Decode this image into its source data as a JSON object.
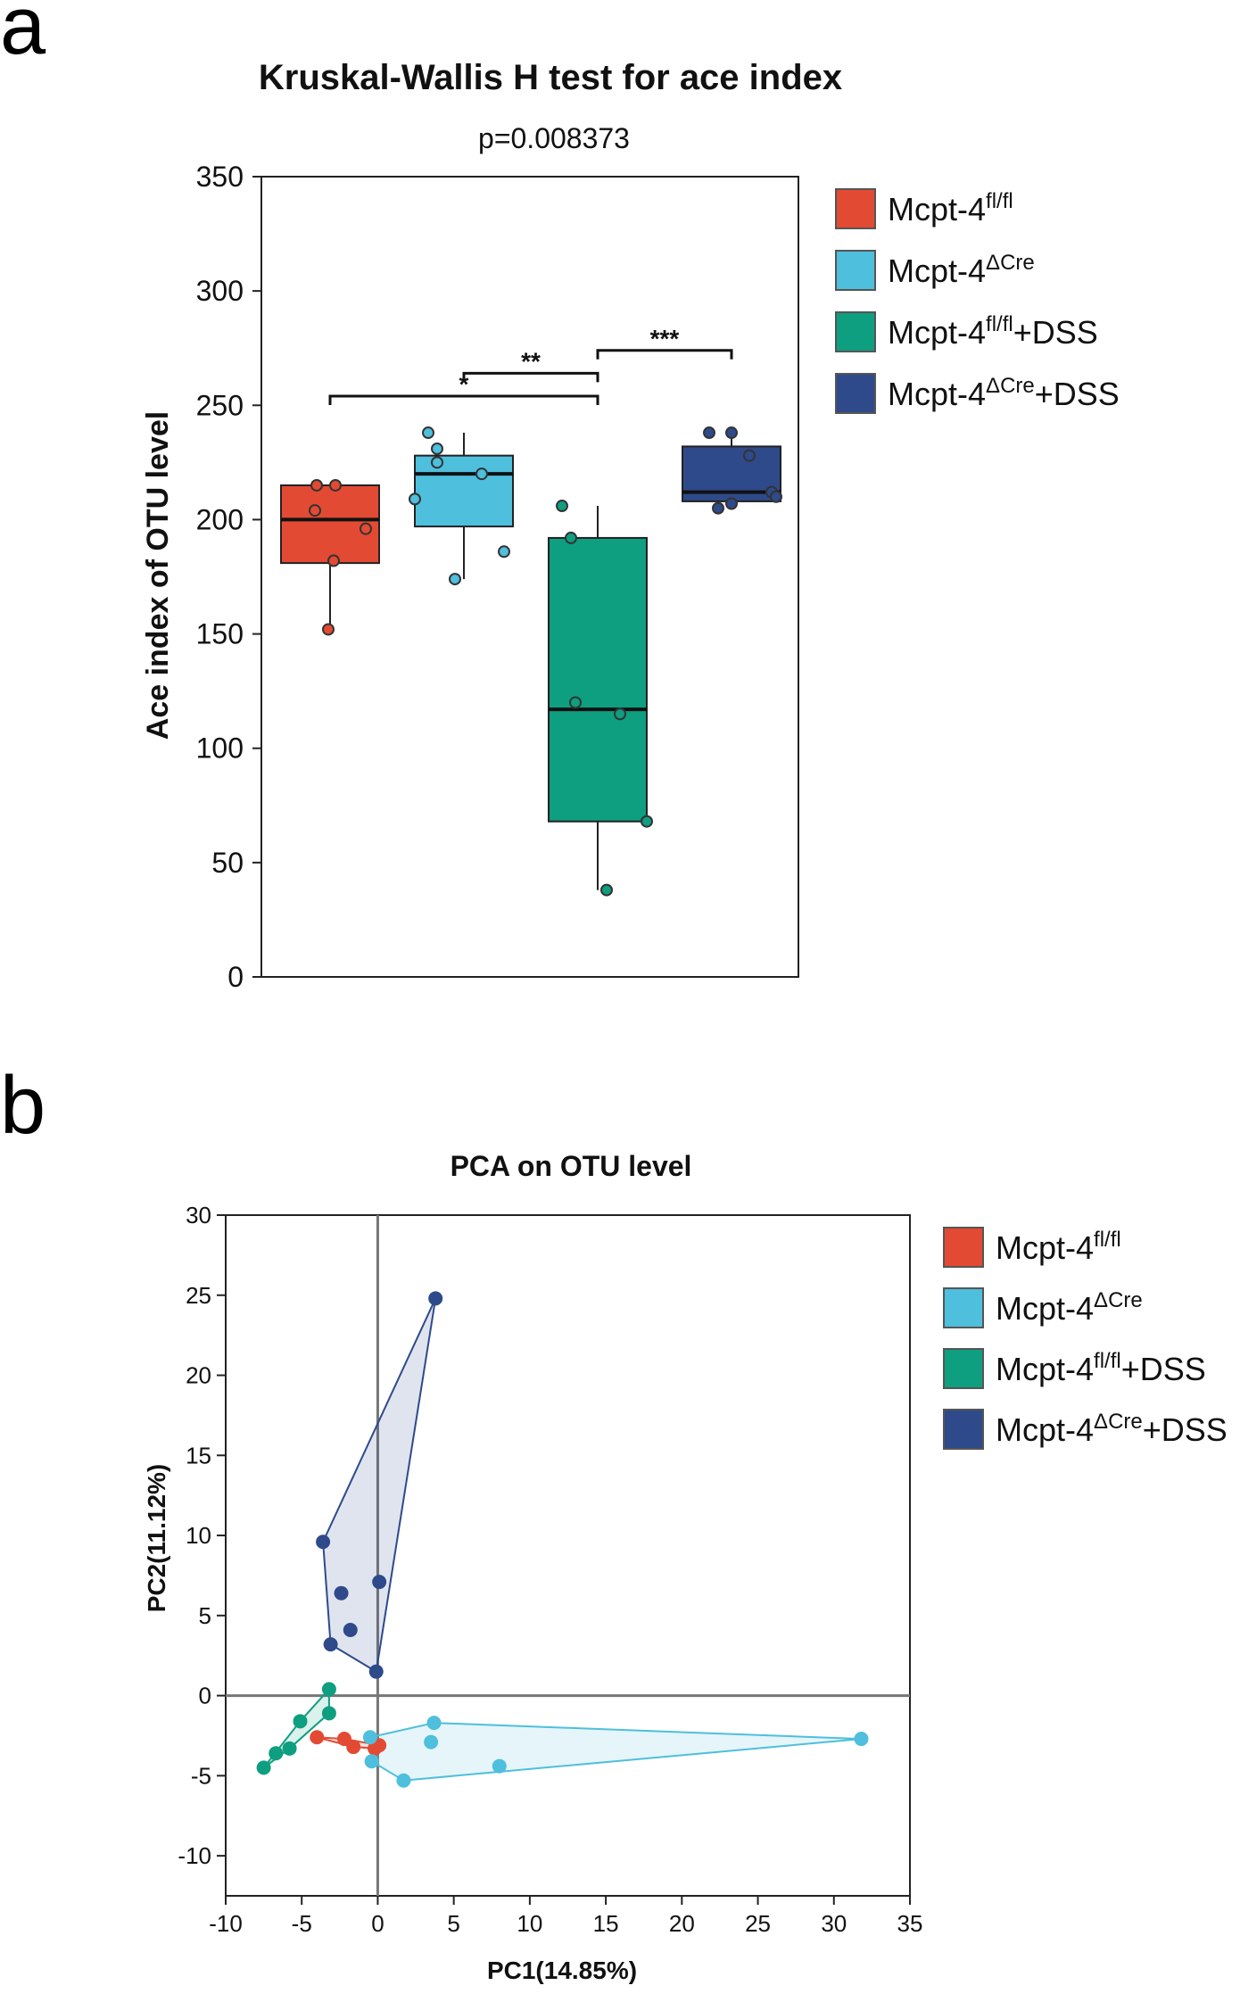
{
  "panels": {
    "a": {
      "label": "a"
    },
    "b": {
      "label": "b"
    }
  },
  "chart_data": [
    {
      "type": "box",
      "title": "Kruskal-Wallis H test for ace index",
      "subtitle": "p=0.008373",
      "xlabel": "",
      "ylabel": "Ace index of OTU level",
      "ylim": [
        0,
        350
      ],
      "yticks": [
        0,
        50,
        100,
        150,
        200,
        250,
        300,
        350
      ],
      "grid": false,
      "legend_position": "right",
      "groups": [
        {
          "name": "Mcpt-4",
          "sup": "fl/fl",
          "suffix": "",
          "color": "#E34A33",
          "whisker_low": 152,
          "q1": 181,
          "median": 200,
          "q3": 215,
          "whisker_high": 215,
          "points": [
            215,
            215,
            204,
            196,
            182,
            152
          ]
        },
        {
          "name": "Mcpt-4",
          "sup": "ΔCre",
          "suffix": "",
          "color": "#4EBFDC",
          "whisker_low": 174,
          "q1": 197,
          "median": 220,
          "q3": 228,
          "whisker_high": 238,
          "points": [
            238,
            231,
            225,
            220,
            209,
            186,
            174
          ]
        },
        {
          "name": "Mcpt-4",
          "sup": "fl/fl",
          "suffix": "+DSS",
          "color": "#0E9E80",
          "whisker_low": 38,
          "q1": 68,
          "median": 117,
          "q3": 192,
          "whisker_high": 206,
          "points": [
            206,
            192,
            120,
            115,
            68,
            38
          ]
        },
        {
          "name": "Mcpt-4",
          "sup": "ΔCre",
          "suffix": "+DSS",
          "color": "#2E4A8B",
          "whisker_low": 205,
          "q1": 208,
          "median": 212,
          "q3": 232,
          "whisker_high": 238,
          "points": [
            238,
            238,
            228,
            212,
            210,
            207,
            205
          ]
        }
      ],
      "annotations": [
        {
          "from": 0,
          "to": 2,
          "label": "*",
          "y": 254
        },
        {
          "from": 1,
          "to": 2,
          "label": "**",
          "y": 264
        },
        {
          "from": 2,
          "to": 3,
          "label": "***",
          "y": 274
        }
      ]
    },
    {
      "type": "scatter",
      "title": "PCA on OTU level",
      "xlabel": "PC1(14.85%)",
      "ylabel": "PC2(11.12%)",
      "xlim": [
        -10,
        35
      ],
      "ylim": [
        -12.5,
        30
      ],
      "xticks": [
        -10,
        -5,
        0,
        5,
        10,
        15,
        20,
        25,
        30,
        35
      ],
      "yticks": [
        -10,
        -5,
        0,
        5,
        10,
        15,
        20,
        25,
        30
      ],
      "grid": false,
      "legend_position": "right",
      "series": [
        {
          "name": "Mcpt-4",
          "sup": "fl/fl",
          "suffix": "",
          "color": "#E34A33",
          "points": [
            [
              -4.0,
              -2.6
            ],
            [
              -2.2,
              -2.7
            ],
            [
              -1.6,
              -3.2
            ],
            [
              -0.2,
              -3.3
            ],
            [
              0.1,
              -3.1
            ]
          ]
        },
        {
          "name": "Mcpt-4",
          "sup": "ΔCre",
          "suffix": "",
          "color": "#4EBFDC",
          "points": [
            [
              31.8,
              -2.7
            ],
            [
              3.7,
              -1.7
            ],
            [
              3.5,
              -2.9
            ],
            [
              -0.5,
              -2.6
            ],
            [
              -0.4,
              -4.1
            ],
            [
              8.0,
              -4.4
            ],
            [
              1.7,
              -5.3
            ]
          ]
        },
        {
          "name": "Mcpt-4",
          "sup": "fl/fl",
          "suffix": "+DSS",
          "color": "#0E9E80",
          "points": [
            [
              -3.2,
              0.4
            ],
            [
              -3.2,
              -1.1
            ],
            [
              -5.1,
              -1.6
            ],
            [
              -6.7,
              -3.6
            ],
            [
              -5.8,
              -3.3
            ],
            [
              -7.5,
              -4.5
            ]
          ]
        },
        {
          "name": "Mcpt-4",
          "sup": "ΔCre",
          "suffix": "+DSS",
          "color": "#2E4A8B",
          "points": [
            [
              3.8,
              24.8
            ],
            [
              -3.6,
              9.6
            ],
            [
              -2.4,
              6.4
            ],
            [
              0.1,
              7.1
            ],
            [
              -1.8,
              4.1
            ],
            [
              -3.1,
              3.2
            ],
            [
              -0.1,
              1.5
            ]
          ]
        }
      ]
    }
  ]
}
